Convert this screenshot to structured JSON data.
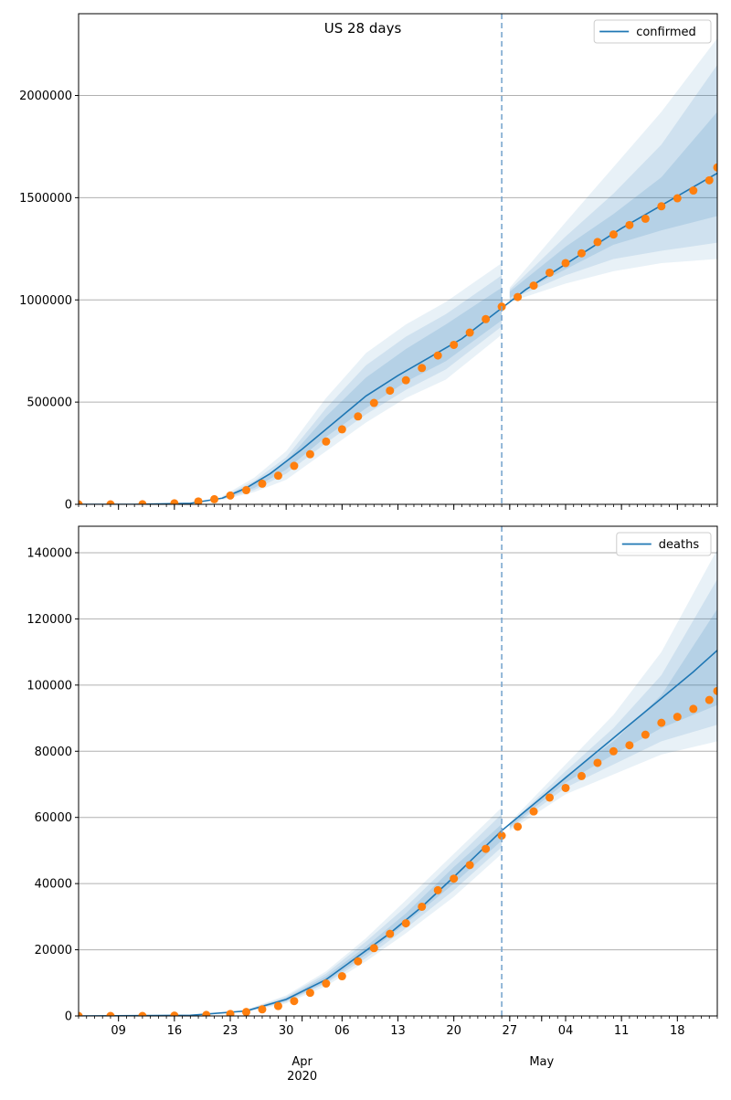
{
  "page": {
    "title": "US 28 days"
  },
  "colors": {
    "model": "#1f77b4",
    "observed": "#ff7f0e",
    "band": "#1f77b4",
    "grid": "#b0b0b0",
    "split_line": "#7aa6cf"
  },
  "chart_data": [
    {
      "type": "line",
      "title": "US 28 days",
      "xlabel": "",
      "ylabel": "",
      "x_range": [
        "2020-03-04",
        "2020-05-23"
      ],
      "xtick_dates": [
        "2020-03-09",
        "2020-03-16",
        "2020-03-23",
        "2020-03-30",
        "2020-04-06",
        "2020-04-13",
        "2020-04-20",
        "2020-04-27",
        "2020-05-04",
        "2020-05-11",
        "2020-05-18"
      ],
      "xtick_labels": [
        "09",
        "16",
        "23",
        "30",
        "06",
        "13",
        "20",
        "27",
        "04",
        "11",
        "18"
      ],
      "xtick_labels_visible": false,
      "ylim": [
        0,
        2400000
      ],
      "yticks": [
        0,
        500000,
        1000000,
        1500000,
        2000000
      ],
      "ytick_labels": [
        "0",
        "500000",
        "1000000",
        "1500000",
        "2000000"
      ],
      "grid": "horizontal",
      "legend": {
        "position": "top-right",
        "entries": [
          "confirmed"
        ]
      },
      "split_date": "2020-04-26",
      "series": [
        {
          "name": "confirmed",
          "kind": "line",
          "x": [
            "2020-03-04",
            "2020-03-11",
            "2020-03-18",
            "2020-03-22",
            "2020-03-25",
            "2020-03-28",
            "2020-04-01",
            "2020-04-05",
            "2020-04-09",
            "2020-04-13",
            "2020-04-17",
            "2020-04-21",
            "2020-04-26",
            "2020-04-29",
            "2020-05-03",
            "2020-05-07",
            "2020-05-11",
            "2020-05-15",
            "2020-05-19",
            "2020-05-23"
          ],
          "y": [
            0,
            0,
            5000,
            30000,
            80000,
            150000,
            270000,
            400000,
            530000,
            630000,
            720000,
            810000,
            960000,
            1050000,
            1150000,
            1250000,
            1350000,
            1440000,
            1530000,
            1620000
          ]
        },
        {
          "name": "bands",
          "kind": "band",
          "x": [
            "2020-03-22",
            "2020-03-26",
            "2020-03-30",
            "2020-04-04",
            "2020-04-09",
            "2020-04-14",
            "2020-04-19",
            "2020-04-26",
            "2020-04-27",
            "2020-05-04",
            "2020-05-10",
            "2020-05-16",
            "2020-05-23"
          ],
          "bands": [
            {
              "lower": [
                22000,
                60000,
                120000,
                260000,
                400000,
                520000,
                610000,
                830000,
                990000,
                1080000,
                1140000,
                1180000,
                1200000
              ],
              "upper": [
                40000,
                130000,
                260000,
                520000,
                740000,
                880000,
                990000,
                1180000,
                1060000,
                1380000,
                1650000,
                1920000,
                2280000
              ]
            },
            {
              "lower": [
                25000,
                70000,
                150000,
                300000,
                440000,
                560000,
                660000,
                870000,
                1000000,
                1120000,
                1200000,
                1240000,
                1280000
              ],
              "upper": [
                36000,
                115000,
                230000,
                470000,
                680000,
                820000,
                930000,
                1120000,
                1050000,
                1310000,
                1520000,
                1760000,
                2150000
              ]
            },
            {
              "lower": [
                27000,
                80000,
                170000,
                330000,
                470000,
                600000,
                700000,
                900000,
                1010000,
                1150000,
                1270000,
                1340000,
                1410000
              ],
              "upper": [
                33000,
                100000,
                210000,
                430000,
                620000,
                760000,
                880000,
                1060000,
                1040000,
                1260000,
                1420000,
                1600000,
                1920000
              ]
            }
          ]
        },
        {
          "name": "observed",
          "kind": "scatter",
          "x": [
            "2020-03-04",
            "2020-03-08",
            "2020-03-12",
            "2020-03-16",
            "2020-03-19",
            "2020-03-21",
            "2020-03-23",
            "2020-03-25",
            "2020-03-27",
            "2020-03-29",
            "2020-03-31",
            "2020-04-02",
            "2020-04-04",
            "2020-04-06",
            "2020-04-08",
            "2020-04-10",
            "2020-04-12",
            "2020-04-14",
            "2020-04-16",
            "2020-04-18",
            "2020-04-20",
            "2020-04-22",
            "2020-04-24",
            "2020-04-26",
            "2020-04-28",
            "2020-04-30",
            "2020-05-02",
            "2020-05-04",
            "2020-05-06",
            "2020-05-08",
            "2020-05-10",
            "2020-05-12",
            "2020-05-14",
            "2020-05-16",
            "2020-05-18",
            "2020-05-20",
            "2020-05-22",
            "2020-05-23"
          ],
          "y": [
            0,
            0,
            500,
            5000,
            14000,
            25000,
            43000,
            69000,
            101000,
            140000,
            188000,
            245000,
            307000,
            367000,
            430000,
            496000,
            556000,
            607000,
            667000,
            728000,
            780000,
            840000,
            906000,
            967000,
            1014000,
            1070000,
            1133000,
            1180000,
            1228000,
            1283000,
            1320000,
            1366000,
            1397000,
            1458000,
            1497000,
            1535000,
            1585000,
            1648000
          ]
        }
      ]
    },
    {
      "type": "line",
      "title": "",
      "xlabel": "",
      "ylabel": "",
      "x_range": [
        "2020-03-04",
        "2020-05-23"
      ],
      "xtick_dates": [
        "2020-03-09",
        "2020-03-16",
        "2020-03-23",
        "2020-03-30",
        "2020-04-06",
        "2020-04-13",
        "2020-04-20",
        "2020-04-27",
        "2020-05-04",
        "2020-05-11",
        "2020-05-18"
      ],
      "xtick_labels": [
        "09",
        "16",
        "23",
        "30",
        "06",
        "13",
        "20",
        "27",
        "04",
        "11",
        "18"
      ],
      "xtick_labels_visible": true,
      "month_labels": [
        {
          "date": "2020-04-01",
          "label": "Apr",
          "sublabel": "2020"
        },
        {
          "date": "2020-05-01",
          "label": "May",
          "sublabel": ""
        }
      ],
      "ylim": [
        0,
        148000
      ],
      "yticks": [
        0,
        20000,
        40000,
        60000,
        80000,
        100000,
        120000,
        140000
      ],
      "ytick_labels": [
        "0",
        "20000",
        "40000",
        "60000",
        "80000",
        "100000",
        "120000",
        "140000"
      ],
      "grid": "horizontal",
      "legend": {
        "position": "top-right",
        "entries": [
          "deaths"
        ]
      },
      "split_date": "2020-04-26",
      "series": [
        {
          "name": "deaths",
          "kind": "line",
          "x": [
            "2020-03-04",
            "2020-03-18",
            "2020-03-25",
            "2020-03-30",
            "2020-04-04",
            "2020-04-08",
            "2020-04-12",
            "2020-04-16",
            "2020-04-20",
            "2020-04-26",
            "2020-04-30",
            "2020-05-04",
            "2020-05-08",
            "2020-05-12",
            "2020-05-16",
            "2020-05-20",
            "2020-05-23"
          ],
          "y": [
            0,
            200,
            1500,
            5000,
            11000,
            18000,
            25000,
            33000,
            42000,
            56000,
            64000,
            72000,
            80000,
            88000,
            96000,
            104000,
            110500
          ]
        },
        {
          "name": "bands",
          "kind": "band",
          "x": [
            "2020-03-25",
            "2020-03-30",
            "2020-04-04",
            "2020-04-09",
            "2020-04-14",
            "2020-04-20",
            "2020-04-26",
            "2020-04-27",
            "2020-05-04",
            "2020-05-10",
            "2020-05-16",
            "2020-05-23"
          ],
          "bands": [
            {
              "lower": [
                1200,
                3800,
                9000,
                16500,
                25000,
                36000,
                49000,
                56000,
                67000,
                73000,
                79000,
                83000
              ],
              "upper": [
                1900,
                6200,
                13500,
                23500,
                35000,
                49000,
                63000,
                58500,
                76000,
                91000,
                110000,
                141000
              ]
            },
            {
              "lower": [
                1300,
                4200,
                9800,
                17500,
                26500,
                38000,
                51000,
                56500,
                69000,
                76000,
                83000,
                88000
              ],
              "upper": [
                1800,
                5800,
                12800,
                22500,
                33000,
                47000,
                61000,
                58000,
                74000,
                87000,
                103000,
                132000
              ]
            },
            {
              "lower": [
                1400,
                4500,
                10200,
                18500,
                28000,
                40000,
                53000,
                57000,
                70500,
                79000,
                87000,
                94000
              ],
              "upper": [
                1700,
                5400,
                12000,
                21000,
                31000,
                45000,
                58000,
                57800,
                72500,
                83000,
                97000,
                123000
              ]
            }
          ]
        },
        {
          "name": "observed",
          "kind": "scatter",
          "x": [
            "2020-03-04",
            "2020-03-08",
            "2020-03-12",
            "2020-03-16",
            "2020-03-20",
            "2020-03-23",
            "2020-03-25",
            "2020-03-27",
            "2020-03-29",
            "2020-03-31",
            "2020-04-02",
            "2020-04-04",
            "2020-04-06",
            "2020-04-08",
            "2020-04-10",
            "2020-04-12",
            "2020-04-14",
            "2020-04-16",
            "2020-04-18",
            "2020-04-20",
            "2020-04-22",
            "2020-04-24",
            "2020-04-26",
            "2020-04-28",
            "2020-04-30",
            "2020-05-02",
            "2020-05-04",
            "2020-05-06",
            "2020-05-08",
            "2020-05-10",
            "2020-05-12",
            "2020-05-14",
            "2020-05-16",
            "2020-05-18",
            "2020-05-20",
            "2020-05-22",
            "2020-05-23"
          ],
          "y": [
            0,
            0,
            0,
            100,
            300,
            600,
            1200,
            2000,
            3000,
            4500,
            7000,
            9800,
            12000,
            16500,
            20500,
            24800,
            28000,
            33000,
            38000,
            41500,
            45600,
            50500,
            54500,
            57200,
            61800,
            66000,
            68900,
            72500,
            76500,
            80000,
            81800,
            85000,
            88600,
            90400,
            92800,
            95500,
            98200
          ]
        }
      ]
    }
  ]
}
